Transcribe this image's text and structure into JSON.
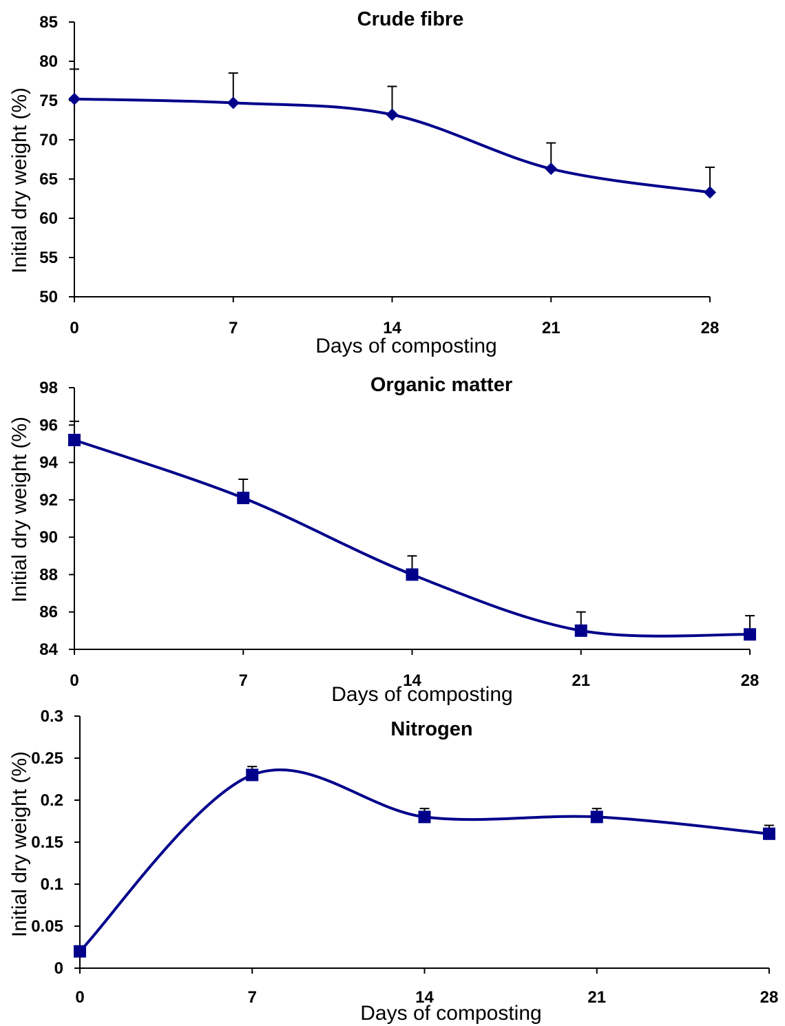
{
  "chart_data": [
    {
      "type": "line",
      "title": "Crude fibre",
      "xlabel": "Days of composting",
      "ylabel": "Initial dry weight (%)",
      "x": [
        0,
        7,
        14,
        21,
        28
      ],
      "x_tick_labels": [
        "0",
        "7",
        "14",
        "21",
        "28"
      ],
      "ylim": [
        50,
        85
      ],
      "y_ticks": [
        50,
        55,
        60,
        65,
        70,
        75,
        80,
        85
      ],
      "y_tick_labels": [
        "50",
        "55",
        "60",
        "65",
        "70",
        "75",
        "80",
        "85"
      ],
      "series": [
        {
          "values": [
            75.2,
            74.7,
            73.2,
            66.3,
            63.3
          ],
          "error_plus": [
            3.8,
            3.8,
            3.6,
            3.3,
            3.2
          ],
          "marker": "diamond",
          "color": "#00008B"
        }
      ],
      "smooth": true,
      "grid": false,
      "legend": "none"
    },
    {
      "type": "line",
      "title": "Organic matter",
      "xlabel": "Days of composting",
      "ylabel": "Initial dry weight (%)",
      "x": [
        0,
        7,
        14,
        21,
        28
      ],
      "x_tick_labels": [
        "0",
        "7",
        "14",
        "21",
        "28"
      ],
      "ylim": [
        84,
        98
      ],
      "y_ticks": [
        84,
        86,
        88,
        90,
        92,
        94,
        96,
        98
      ],
      "y_tick_labels": [
        "84",
        "86",
        "88",
        "90",
        "92",
        "94",
        "96",
        "98"
      ],
      "series": [
        {
          "values": [
            95.2,
            92.1,
            88.0,
            85.0,
            84.8
          ],
          "error_plus": [
            1.0,
            1.0,
            1.0,
            1.0,
            1.0
          ],
          "marker": "square",
          "color": "#00008B"
        }
      ],
      "smooth": true,
      "grid": false,
      "legend": "none"
    },
    {
      "type": "line",
      "title": "Nitrogen",
      "xlabel": "Days of composting",
      "ylabel": "Initial dry weight (%)",
      "x": [
        0,
        7,
        14,
        21,
        28
      ],
      "x_tick_labels": [
        "0",
        "7",
        "14",
        "21",
        "28"
      ],
      "ylim": [
        0,
        0.3
      ],
      "y_ticks": [
        0,
        0.05,
        0.1,
        0.15,
        0.2,
        0.25,
        0.3
      ],
      "y_tick_labels": [
        "0",
        "0.05",
        "0.1",
        "0.15",
        "0.2",
        "0.25",
        "0.3"
      ],
      "series": [
        {
          "values": [
            0.02,
            0.23,
            0.18,
            0.18,
            0.16
          ],
          "error_plus": [
            0.0,
            0.01,
            0.01,
            0.01,
            0.01
          ],
          "marker": "square",
          "color": "#00008B"
        }
      ],
      "smooth": true,
      "grid": false,
      "legend": "none"
    }
  ]
}
